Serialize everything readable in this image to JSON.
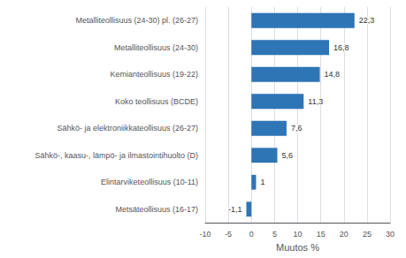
{
  "chart_data": {
    "type": "bar",
    "orientation": "horizontal",
    "categories": [
      "Metsäteollisuus (16-17)",
      "Elintarviketeollisuus (10-11)",
      "Sähkö-, kaasu-, lämpö- ja ilmastointihuolto (D)",
      "Sähkö- ja elektroniikkateollisuus (26-27)",
      "Koko teollisuus (BCDE)",
      "Kemianteollisuus (19-22)",
      "Metalliteollisuus (24-30)",
      "Metalliteollisuus (24-30) pl. (26-27)"
    ],
    "values": [
      -1.1,
      1.0,
      5.6,
      7.6,
      11.3,
      14.8,
      16.8,
      22.3
    ],
    "value_labels": [
      "-1,1",
      "1",
      "5,6",
      "7,6",
      "11,3",
      "14,8",
      "16,8",
      "22,3"
    ],
    "data_labels": true,
    "color": "#2E75B6",
    "xlabel": "Muutos %",
    "xlim": [
      -10,
      30
    ],
    "xticks": [
      -10,
      -5,
      0,
      5,
      10,
      15,
      20,
      25,
      30
    ],
    "grid": true
  }
}
